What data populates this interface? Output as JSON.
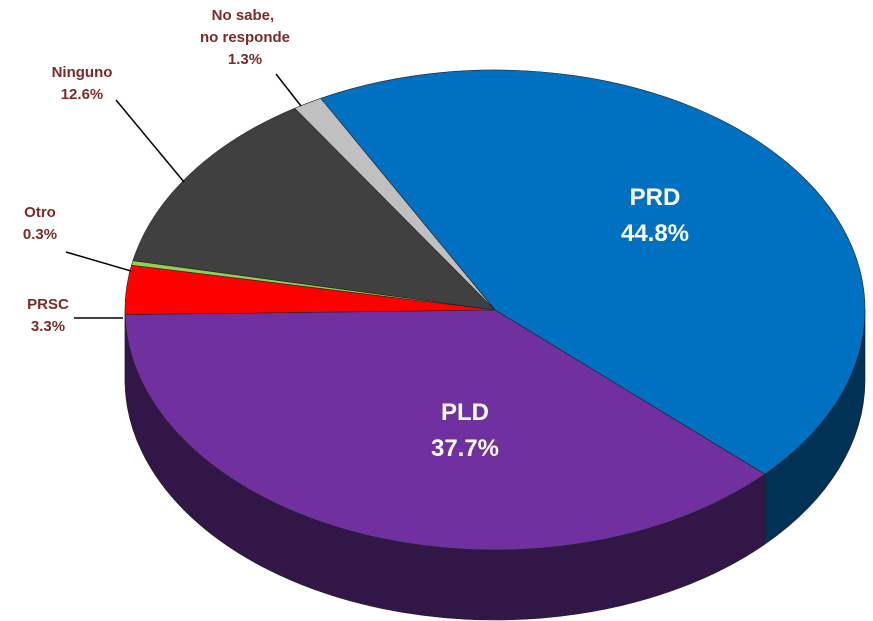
{
  "chart_data": {
    "type": "pie3d",
    "categories": [
      "PRD",
      "PLD",
      "PRSC",
      "Otro",
      "Ninguno",
      "No sabe, no responde"
    ],
    "values": [
      44.8,
      37.7,
      3.3,
      0.3,
      12.6,
      1.3
    ],
    "value_labels": [
      "44.8%",
      "37.7%",
      "3.3%",
      "0.3%",
      "12.6%",
      "1.3%"
    ],
    "colors": [
      "#0070c0",
      "#7030a0",
      "#ff0000",
      "#92d050",
      "#404040",
      "#c0c0c0"
    ]
  }
}
